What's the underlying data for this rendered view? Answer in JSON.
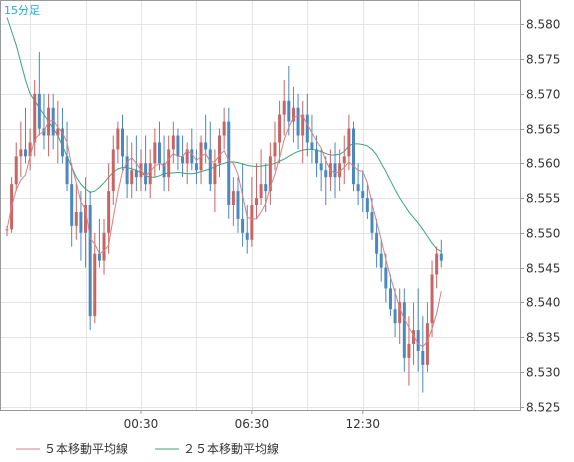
{
  "chart_data": {
    "type": "candlestick",
    "period_label": "15分足",
    "y_ticks": [
      8.525,
      8.53,
      8.535,
      8.54,
      8.545,
      8.55,
      8.555,
      8.56,
      8.565,
      8.57,
      8.575,
      8.58
    ],
    "ylim": [
      8.5245,
      8.5835
    ],
    "x_ticks": [
      {
        "label": "00:30",
        "index": 29
      },
      {
        "label": "06:30",
        "index": 53
      },
      {
        "label": "12:30",
        "index": 77
      }
    ],
    "legend": [
      {
        "name": "５本移動平均線",
        "color": "#d98080"
      },
      {
        "name": "２５本移動平均線",
        "color": "#3aa57a"
      }
    ],
    "colors": {
      "up": "#c86464",
      "down": "#4a88c0",
      "ma5": "#d98080",
      "ma25": "#3aa57a",
      "grid": "#e4e4e4"
    },
    "candles": [
      [
        8.5505,
        8.551,
        8.5495,
        8.5505
      ],
      [
        8.5505,
        8.558,
        8.55,
        8.557
      ],
      [
        8.557,
        8.563,
        8.556,
        8.561
      ],
      [
        8.561,
        8.566,
        8.558,
        8.562
      ],
      [
        8.562,
        8.568,
        8.56,
        8.561
      ],
      [
        8.561,
        8.565,
        8.559,
        8.563
      ],
      [
        8.563,
        8.572,
        8.561,
        8.57
      ],
      [
        8.57,
        8.576,
        8.564,
        8.565
      ],
      [
        8.565,
        8.57,
        8.562,
        8.564
      ],
      [
        8.564,
        8.57,
        8.561,
        8.568
      ],
      [
        8.568,
        8.57,
        8.562,
        8.564
      ],
      [
        8.564,
        8.569,
        8.56,
        8.565
      ],
      [
        8.565,
        8.568,
        8.56,
        8.561
      ],
      [
        8.561,
        8.566,
        8.556,
        8.557
      ],
      [
        8.557,
        8.56,
        8.548,
        8.551
      ],
      [
        8.551,
        8.557,
        8.549,
        8.553
      ],
      [
        8.553,
        8.556,
        8.546,
        8.55
      ],
      [
        8.55,
        8.558,
        8.545,
        8.554
      ],
      [
        8.554,
        8.556,
        8.536,
        8.538
      ],
      [
        8.538,
        8.55,
        8.537,
        8.547
      ],
      [
        8.547,
        8.552,
        8.545,
        8.546
      ],
      [
        8.546,
        8.552,
        8.544,
        8.55
      ],
      [
        8.55,
        8.56,
        8.547,
        8.556
      ],
      [
        8.556,
        8.564,
        8.554,
        8.562
      ],
      [
        8.562,
        8.566,
        8.56,
        8.565
      ],
      [
        8.565,
        8.567,
        8.559,
        8.561
      ],
      [
        8.561,
        8.564,
        8.555,
        8.557
      ],
      [
        8.557,
        8.563,
        8.555,
        8.559
      ],
      [
        8.559,
        8.564,
        8.556,
        8.558
      ],
      [
        8.558,
        8.562,
        8.556,
        8.56
      ],
      [
        8.56,
        8.564,
        8.556,
        8.557
      ],
      [
        8.557,
        8.562,
        8.555,
        8.56
      ],
      [
        8.56,
        8.565,
        8.558,
        8.563
      ],
      [
        8.563,
        8.566,
        8.559,
        8.56
      ],
      [
        8.56,
        8.564,
        8.556,
        8.558
      ],
      [
        8.558,
        8.564,
        8.556,
        8.562
      ],
      [
        8.562,
        8.566,
        8.56,
        8.564
      ],
      [
        8.564,
        8.565,
        8.559,
        8.561
      ],
      [
        8.561,
        8.564,
        8.558,
        8.56
      ],
      [
        8.56,
        8.563,
        8.557,
        8.562
      ],
      [
        8.562,
        8.565,
        8.559,
        8.56
      ],
      [
        8.56,
        8.562,
        8.557,
        8.559
      ],
      [
        8.559,
        8.564,
        8.557,
        8.563
      ],
      [
        8.563,
        8.567,
        8.56,
        8.562
      ],
      [
        8.562,
        8.566,
        8.556,
        8.557
      ],
      [
        8.557,
        8.562,
        8.553,
        8.56
      ],
      [
        8.56,
        8.565,
        8.558,
        8.564
      ],
      [
        8.564,
        8.568,
        8.562,
        8.566
      ],
      [
        8.566,
        8.568,
        8.552,
        8.554
      ],
      [
        8.554,
        8.558,
        8.551,
        8.556
      ],
      [
        8.556,
        8.558,
        8.55,
        8.552
      ],
      [
        8.552,
        8.56,
        8.548,
        8.55
      ],
      [
        8.55,
        8.554,
        8.547,
        8.549
      ],
      [
        8.549,
        8.558,
        8.548,
        8.554
      ],
      [
        8.554,
        8.56,
        8.552,
        8.555
      ],
      [
        8.555,
        8.562,
        8.554,
        8.557
      ],
      [
        8.557,
        8.56,
        8.553,
        8.556
      ],
      [
        8.556,
        8.563,
        8.554,
        8.561
      ],
      [
        8.561,
        8.566,
        8.559,
        8.563
      ],
      [
        8.563,
        8.569,
        8.56,
        8.567
      ],
      [
        8.567,
        8.572,
        8.564,
        8.569
      ],
      [
        8.569,
        8.574,
        8.564,
        8.566
      ],
      [
        8.566,
        8.571,
        8.563,
        8.568
      ],
      [
        8.568,
        8.57,
        8.562,
        8.564
      ],
      [
        8.564,
        8.569,
        8.56,
        8.567
      ],
      [
        8.567,
        8.57,
        8.561,
        8.563
      ],
      [
        8.563,
        8.567,
        8.56,
        8.562
      ],
      [
        8.562,
        8.564,
        8.558,
        8.56
      ],
      [
        8.56,
        8.562,
        8.556,
        8.559
      ],
      [
        8.559,
        8.561,
        8.554,
        8.558
      ],
      [
        8.558,
        8.562,
        8.556,
        8.56
      ],
      [
        8.56,
        8.563,
        8.555,
        8.558
      ],
      [
        8.558,
        8.562,
        8.556,
        8.56
      ],
      [
        8.56,
        8.564,
        8.557,
        8.561
      ],
      [
        8.561,
        8.567,
        8.559,
        8.565
      ],
      [
        8.565,
        8.566,
        8.556,
        8.557
      ],
      [
        8.557,
        8.56,
        8.554,
        8.556
      ],
      [
        8.556,
        8.559,
        8.553,
        8.555
      ],
      [
        8.555,
        8.557,
        8.552,
        8.553
      ],
      [
        8.553,
        8.555,
        8.549,
        8.55
      ],
      [
        8.55,
        8.552,
        8.545,
        8.547
      ],
      [
        8.547,
        8.549,
        8.543,
        8.545
      ],
      [
        8.545,
        8.547,
        8.54,
        8.542
      ],
      [
        8.542,
        8.544,
        8.538,
        8.539
      ],
      [
        8.539,
        8.542,
        8.535,
        8.537
      ],
      [
        8.537,
        8.542,
        8.534,
        8.54
      ],
      [
        8.54,
        8.542,
        8.53,
        8.532
      ],
      [
        8.532,
        8.538,
        8.528,
        8.534
      ],
      [
        8.534,
        8.54,
        8.531,
        8.536
      ],
      [
        8.536,
        8.542,
        8.53,
        8.533
      ],
      [
        8.533,
        8.538,
        8.527,
        8.531
      ],
      [
        8.531,
        8.54,
        8.53,
        8.537
      ],
      [
        8.537,
        8.546,
        8.535,
        8.544
      ],
      [
        8.544,
        8.548,
        8.542,
        8.547
      ],
      [
        8.547,
        8.549,
        8.545,
        8.546
      ]
    ],
    "ma5": [
      8.5505,
      8.5538,
      8.5562,
      8.5576,
      8.5583,
      8.561,
      8.5634,
      8.5642,
      8.5646,
      8.566,
      8.5662,
      8.5652,
      8.5644,
      8.563,
      8.5596,
      8.5572,
      8.5544,
      8.5534,
      8.5492,
      8.5484,
      8.547,
      8.5474,
      8.5482,
      8.5522,
      8.5558,
      8.5588,
      8.5602,
      8.5608,
      8.56,
      8.559,
      8.5582,
      8.5588,
      8.5596,
      8.56,
      8.5596,
      8.5606,
      8.5614,
      8.561,
      8.561,
      8.5618,
      8.5614,
      8.5604,
      8.561,
      8.5614,
      8.5602,
      8.5602,
      8.5612,
      8.5618,
      8.5604,
      8.56,
      8.5584,
      8.5554,
      8.5522,
      8.552,
      8.552,
      8.553,
      8.5542,
      8.5566,
      8.5584,
      8.5608,
      8.5634,
      8.5652,
      8.5666,
      8.5668,
      8.5668,
      8.5656,
      8.5644,
      8.5632,
      8.5622,
      8.5604,
      8.559,
      8.5586,
      8.5588,
      8.5594,
      8.5602,
      8.5596,
      8.559,
      8.5588,
      8.5572,
      8.5542,
      8.5516,
      8.549,
      8.5462,
      8.5436,
      8.5414,
      8.5392,
      8.5376,
      8.5364,
      8.5352,
      8.534,
      8.5336,
      8.5344,
      8.5362,
      8.5384,
      8.5416
    ],
    "ma25": [
      8.581,
      8.579,
      8.577,
      8.5745,
      8.572,
      8.57,
      8.569,
      8.568,
      8.567,
      8.566,
      8.565,
      8.564,
      8.5625,
      8.561,
      8.5595,
      8.558,
      8.557,
      8.5563,
      8.5558,
      8.556,
      8.5565,
      8.5572,
      8.558,
      8.5587,
      8.5592,
      8.5594,
      8.5594,
      8.5592,
      8.559,
      8.5586,
      8.5582,
      8.558,
      8.558,
      8.5582,
      8.5585,
      8.5586,
      8.5586,
      8.5587,
      8.5586,
      8.5585,
      8.5585,
      8.5586,
      8.5588,
      8.559,
      8.5592,
      8.5595,
      8.5598,
      8.56,
      8.5602,
      8.5602,
      8.5601,
      8.5599,
      8.5597,
      8.5596,
      8.5595,
      8.5596,
      8.5597,
      8.5598,
      8.56,
      8.5603,
      8.5606,
      8.561,
      8.5614,
      8.5617,
      8.5619,
      8.562,
      8.562,
      8.5619,
      8.5617,
      8.5614,
      8.5612,
      8.5612,
      8.5613,
      8.5617,
      8.5625,
      8.5628,
      8.5628,
      8.5627,
      8.5625,
      8.562,
      8.5612,
      8.56,
      8.5588,
      8.5575,
      8.5562,
      8.555,
      8.554,
      8.553,
      8.5522,
      8.5514,
      8.5505,
      8.5495,
      8.5485,
      8.5477,
      8.5473
    ]
  }
}
